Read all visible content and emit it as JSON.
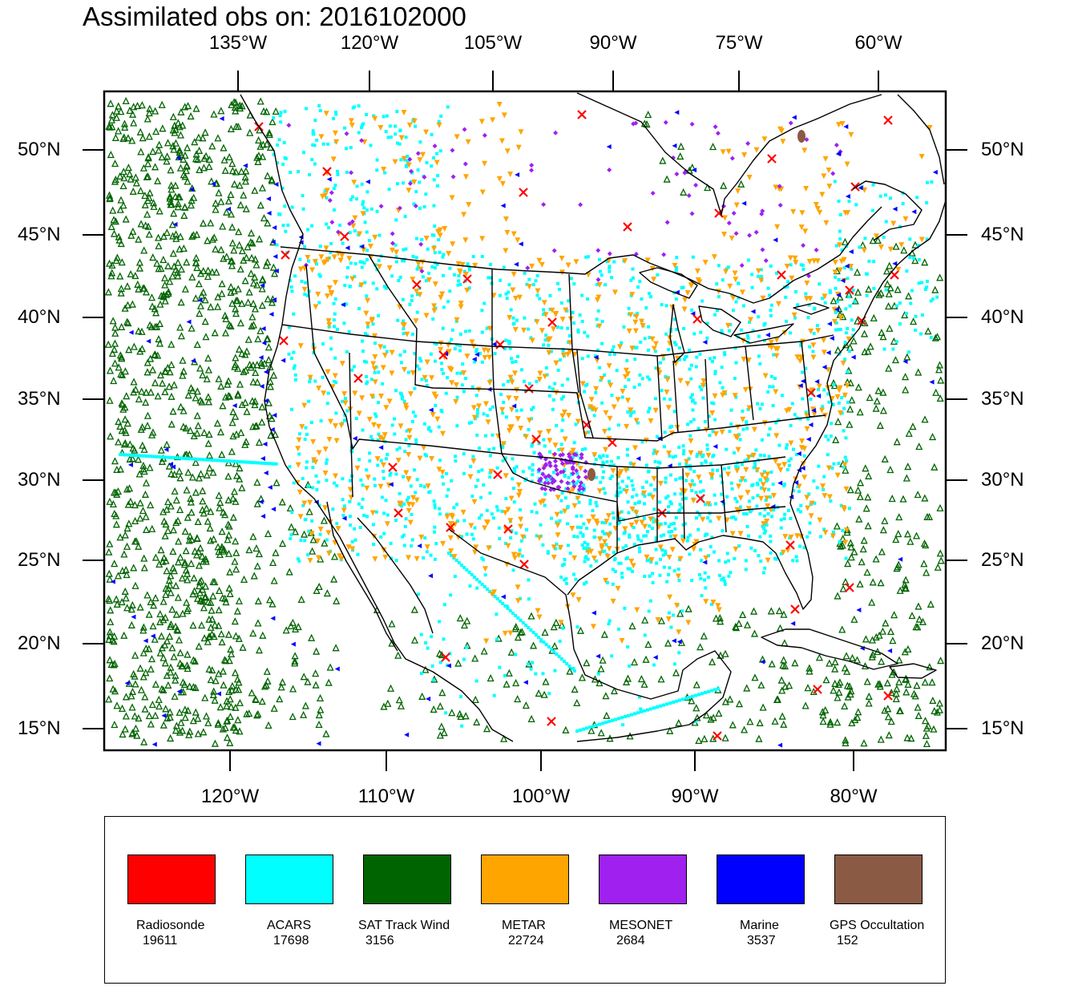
{
  "title": "Assimilated obs on: 2016102000",
  "top_axis": [
    "135°W",
    "120°W",
    "105°W",
    "90°W",
    "75°W",
    "60°W"
  ],
  "bottom_axis": [
    "120°W",
    "110°W",
    "100°W",
    "90°W",
    "80°W"
  ],
  "left_axis": [
    "50°N",
    "45°N",
    "40°N",
    "35°N",
    "30°N",
    "25°N",
    "20°N",
    "15°N"
  ],
  "right_axis": [
    "50°N",
    "45°N",
    "40°N",
    "35°N",
    "30°N",
    "25°N",
    "20°N",
    "15°N"
  ],
  "legend": [
    {
      "name": "Radiosonde",
      "count": "19611",
      "color": "#ff0000",
      "marker": "x-cross"
    },
    {
      "name": "ACARS",
      "count": "17698",
      "color": "#00ffff",
      "marker": "square"
    },
    {
      "name": "SAT Track Wind",
      "count": "3156",
      "color": "#006400",
      "marker": "triangle-up"
    },
    {
      "name": "METAR",
      "count": "22724",
      "color": "#ffa500",
      "marker": "triangle-down"
    },
    {
      "name": "MESONET",
      "count": "2684",
      "color": "#a020f0",
      "marker": "diamond"
    },
    {
      "name": "Marine",
      "count": "3537",
      "color": "#0000ff",
      "marker": "triangle-left"
    },
    {
      "name": "GPS Occultation",
      "count": "152",
      "color": "#8b5a44",
      "marker": "ellipse"
    }
  ]
}
